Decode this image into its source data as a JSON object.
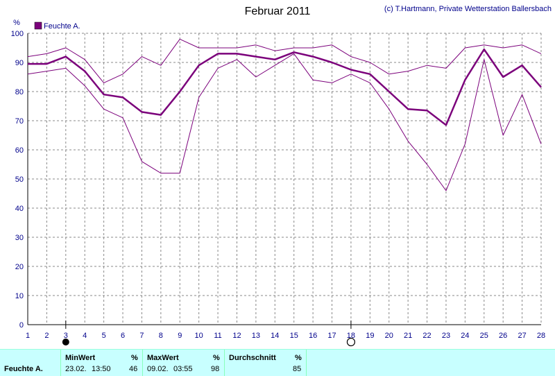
{
  "chart_data": {
    "type": "line",
    "title": "Februar 2011",
    "credit": "(c) T.Hartmann, Private Wetterstation Ballersbach",
    "ylabel": "%",
    "legend": "Feuchte A.",
    "legend_color": "#7b007b",
    "ylim": [
      0,
      100
    ],
    "yticks": [
      0,
      10,
      20,
      30,
      40,
      50,
      60,
      70,
      80,
      90,
      100
    ],
    "x": [
      1,
      2,
      3,
      4,
      5,
      6,
      7,
      8,
      9,
      10,
      11,
      12,
      13,
      14,
      15,
      16,
      17,
      18,
      19,
      20,
      21,
      22,
      23,
      24,
      25,
      26,
      27,
      28
    ],
    "series": [
      {
        "role": "mean",
        "values": [
          89.5,
          89.5,
          92,
          87,
          79,
          78,
          73,
          72,
          80,
          89,
          93,
          93,
          92,
          91,
          93.5,
          92,
          90,
          87.5,
          86,
          80,
          74,
          73.5,
          68.5,
          84,
          94.5,
          85,
          89,
          81.5
        ]
      },
      {
        "role": "max",
        "values": [
          92,
          93,
          95,
          91,
          83,
          86,
          92,
          89,
          98,
          95,
          95,
          95,
          96,
          94,
          95,
          95,
          96,
          92,
          90,
          86,
          87,
          89,
          88,
          95,
          96,
          95,
          96,
          93
        ]
      },
      {
        "role": "min",
        "values": [
          86,
          87,
          88,
          82,
          74,
          71,
          56,
          52,
          52,
          78,
          88,
          91,
          85,
          89,
          93,
          84,
          83,
          86,
          83,
          74,
          63,
          55,
          46,
          62,
          91,
          65,
          79,
          62
        ]
      }
    ],
    "markers": [
      {
        "day": 3,
        "symbol": "new-moon"
      },
      {
        "day": 18,
        "symbol": "full-moon"
      }
    ],
    "grid": true,
    "legend_position": "top-left"
  },
  "stats": {
    "row_label": "Feuchte A.",
    "min": {
      "header": "MinWert",
      "unit": "%",
      "date": "23.02.",
      "time": "13:50",
      "value": "46"
    },
    "max": {
      "header": "MaxWert",
      "unit": "%",
      "date": "09.02.",
      "time": "03:55",
      "value": "98"
    },
    "avg": {
      "header": "Durchschnitt",
      "unit": "%",
      "value": "85"
    }
  }
}
